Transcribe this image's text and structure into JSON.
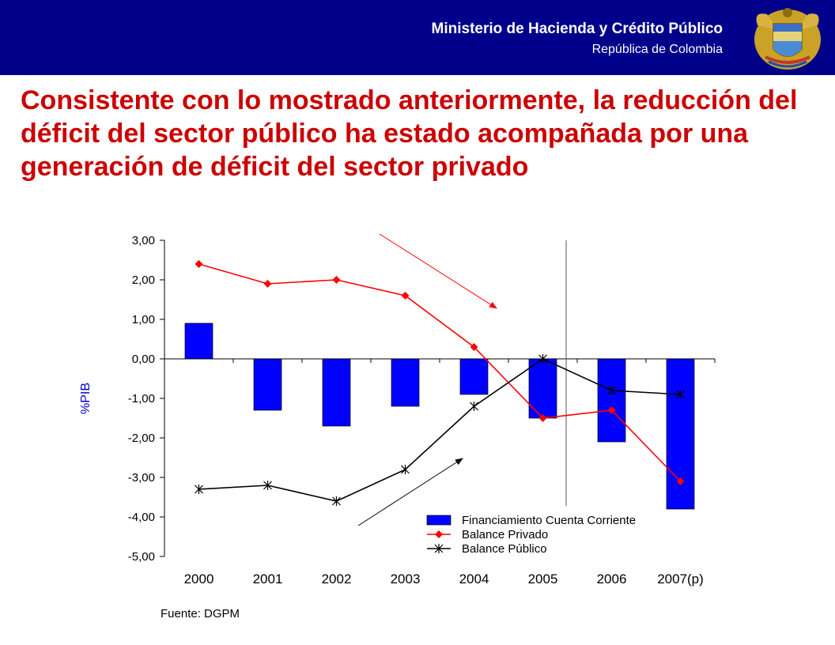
{
  "header": {
    "ministry": "Ministerio de Hacienda y Crédito Público",
    "republic": "República de Colombia",
    "background_color": "#00008b",
    "seal_icon": "colombia-coat-of-arms"
  },
  "headline": "Consistente con lo mostrado anteriormente, la reducción del déficit del sector público ha estado acompañada por una generación de déficit del sector privado",
  "source": "Fuente: DGPM",
  "chart_data": {
    "type": "bar",
    "categories": [
      "2000",
      "2001",
      "2002",
      "2003",
      "2004",
      "2005",
      "2006",
      "2007(p)"
    ],
    "ylabel": "%PIB",
    "ylim": [
      -5,
      3
    ],
    "yticks": [
      "3,00",
      "2,00",
      "1,00",
      "0,00",
      "-1,00",
      "-2,00",
      "-3,00",
      "-4,00",
      "-5,00"
    ],
    "grid": false,
    "legend_position": "bottom-right",
    "series": [
      {
        "name": "Financiamiento Cuenta Corriente",
        "kind": "bar",
        "color": "#0000ff",
        "values": [
          0.9,
          -1.3,
          -1.7,
          -1.2,
          -0.9,
          -1.5,
          -2.1,
          -3.8
        ]
      },
      {
        "name": "Balance Privado",
        "kind": "line",
        "marker": "diamond",
        "color": "#ff0000",
        "values": [
          2.4,
          1.9,
          2.0,
          1.6,
          0.3,
          -1.5,
          -1.3,
          -3.1
        ]
      },
      {
        "name": "Balance Público",
        "kind": "line",
        "marker": "asterisk",
        "color": "#000000",
        "values": [
          -3.3,
          -3.2,
          -3.6,
          -2.8,
          -1.2,
          0.0,
          -0.8,
          -0.9
        ]
      }
    ],
    "annotations": [
      {
        "type": "vertical-line",
        "between": [
          "2005",
          "2006"
        ]
      },
      {
        "type": "arrow",
        "color": "#ff0000",
        "direction": "down"
      },
      {
        "type": "arrow",
        "color": "#000000",
        "direction": "up"
      }
    ]
  }
}
